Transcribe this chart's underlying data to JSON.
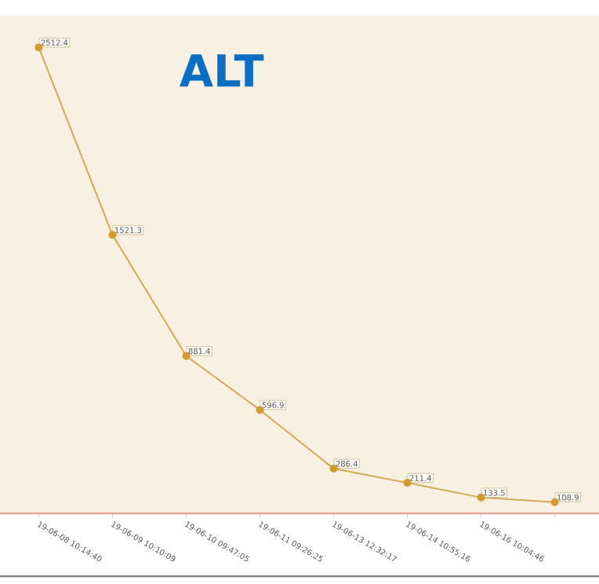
{
  "chart_data": {
    "type": "line",
    "title": "ALT",
    "categories": [
      "19-06-08 10:14:40",
      "19-06-09 10:10:09",
      "19-06-10 09:47:05",
      "19-06-11 09:26:25",
      "19-06-13 12:32:17",
      "19-06-14 10:55:16",
      "19-06-16 10:04:46",
      null
    ],
    "series": [
      {
        "color": "#d4aa50",
        "values": [
          2512.4,
          1521.3,
          881.4,
          596.9,
          286.4,
          211.4,
          133.5,
          108.9
        ],
        "value_labels": [
          "2512.4",
          "1521.3",
          "881.4",
          "596.9",
          "286.4",
          "211.4",
          "133.5",
          "108.9"
        ]
      }
    ],
    "ylim": [
      50,
      2680
    ],
    "marker": "circle",
    "line_style": "solid",
    "tick_labels": "x"
  }
}
